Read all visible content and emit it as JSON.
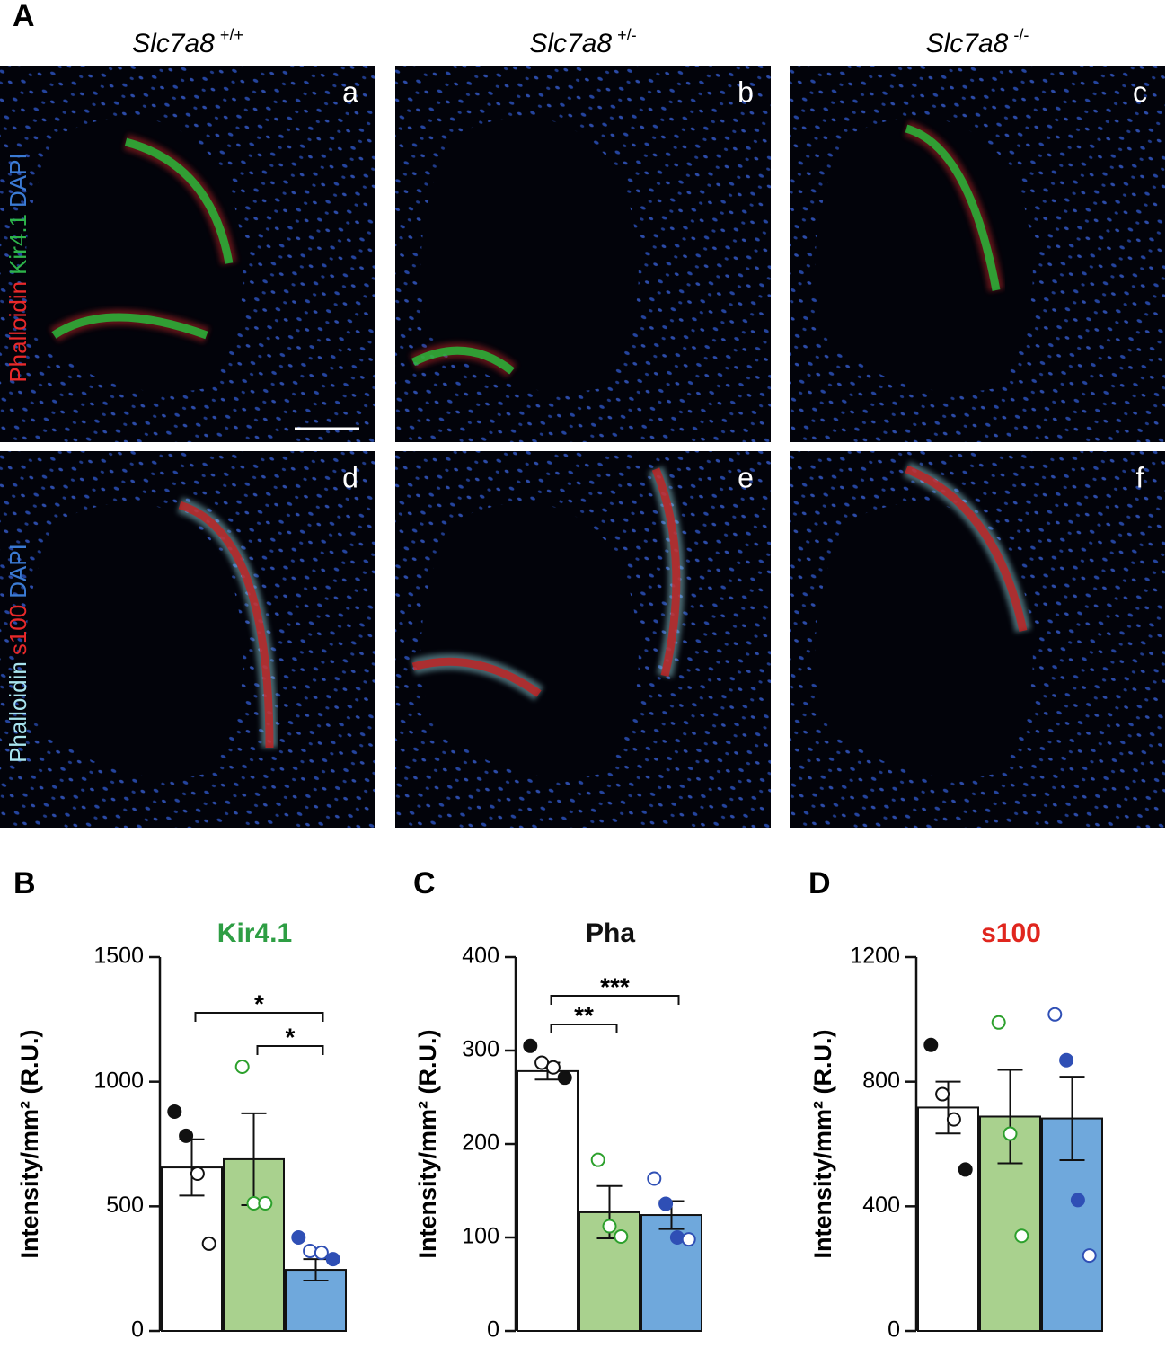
{
  "figure": {
    "panel_label": "A",
    "genotypes": [
      {
        "name": "Slc7a8",
        "sup": "+/+"
      },
      {
        "name": "Slc7a8",
        "sup": "+/-"
      },
      {
        "name": "Slc7a8",
        "sup": "-/-"
      }
    ],
    "images": [
      "a",
      "b",
      "c",
      "d",
      "e",
      "f"
    ],
    "row_stains": [
      [
        {
          "text": "Phalloidin",
          "color": "#e8292a"
        },
        {
          "text": "Kir4.1",
          "color": "#2db34a"
        },
        {
          "text": "DAPI",
          "color": "#3b7bd4"
        }
      ],
      [
        {
          "text": "Phalloidin",
          "color": "#a8e4ee"
        },
        {
          "text": "s100",
          "color": "#e8292a"
        },
        {
          "text": "DAPI",
          "color": "#3b7bd4"
        }
      ]
    ]
  },
  "chart_data": [
    {
      "type": "bar",
      "panel_label": "B",
      "title": "Kir4.1",
      "title_color": "#2e9e44",
      "ylabel": "Intensity/mm² (R.U.)",
      "ylim": [
        0,
        1500
      ],
      "yticks": [
        0,
        500,
        1000,
        1500
      ],
      "values": [
        656,
        689,
        245
      ],
      "errors": [
        113,
        184,
        43
      ],
      "bar_colors": [
        "#ffffff",
        "#a9d18e",
        "#6fa8dc"
      ],
      "point_colors": [
        "#111111",
        "#2ca02c",
        "#2f4fb5"
      ],
      "points": [
        {
          "values": [
            880,
            783,
            631,
            350
          ],
          "filled": [
            true,
            true,
            false,
            false
          ]
        },
        {
          "values": [
            1060,
            512,
            512
          ],
          "filled": [
            false,
            false,
            false
          ]
        },
        {
          "values": [
            375,
            321,
            314,
            288
          ],
          "filled": [
            true,
            false,
            false,
            true
          ]
        }
      ],
      "annotations": [
        {
          "text": "*",
          "between": [
            0,
            2
          ]
        },
        {
          "text": "*",
          "between": [
            1,
            2
          ]
        }
      ]
    },
    {
      "type": "bar",
      "panel_label": "C",
      "title": "Pha",
      "title_color": "#111111",
      "ylabel": "Intensity/mm² (R.U.)",
      "ylim": [
        0,
        400
      ],
      "yticks": [
        0,
        100,
        200,
        300,
        400
      ],
      "values": [
        278,
        127,
        124
      ],
      "errors": [
        9,
        28,
        15
      ],
      "bar_colors": [
        "#ffffff",
        "#a9d18e",
        "#6fa8dc"
      ],
      "point_colors": [
        "#111111",
        "#2ca02c",
        "#2f4fb5"
      ],
      "points": [
        {
          "values": [
            305,
            287,
            282,
            271
          ],
          "filled": [
            true,
            false,
            false,
            true
          ]
        },
        {
          "values": [
            183,
            112,
            101
          ],
          "filled": [
            false,
            false,
            false
          ]
        },
        {
          "values": [
            163,
            136,
            100,
            98
          ],
          "filled": [
            false,
            true,
            true,
            false
          ]
        }
      ],
      "annotations": [
        {
          "text": "**",
          "between": [
            0,
            1
          ]
        },
        {
          "text": "***",
          "between": [
            0,
            2
          ]
        }
      ]
    },
    {
      "type": "bar",
      "panel_label": "D",
      "title": "s100",
      "title_color": "#e0261e",
      "ylabel": "Intensity/mm² (R.U.)",
      "ylim": [
        0,
        1200
      ],
      "yticks": [
        0,
        400,
        800,
        1200
      ],
      "values": [
        717,
        688,
        682
      ],
      "errors": [
        83,
        150,
        134
      ],
      "bar_colors": [
        "#ffffff",
        "#a9d18e",
        "#6fa8dc"
      ],
      "point_colors": [
        "#111111",
        "#2ca02c",
        "#2f4fb5"
      ],
      "points": [
        {
          "values": [
            918,
            760,
            679,
            518
          ],
          "filled": [
            true,
            false,
            false,
            true
          ]
        },
        {
          "values": [
            990,
            633,
            305
          ],
          "filled": [
            false,
            false,
            false
          ]
        },
        {
          "values": [
            1016,
            869,
            420,
            242
          ],
          "filled": [
            false,
            true,
            true,
            false
          ]
        }
      ],
      "annotations": []
    }
  ]
}
